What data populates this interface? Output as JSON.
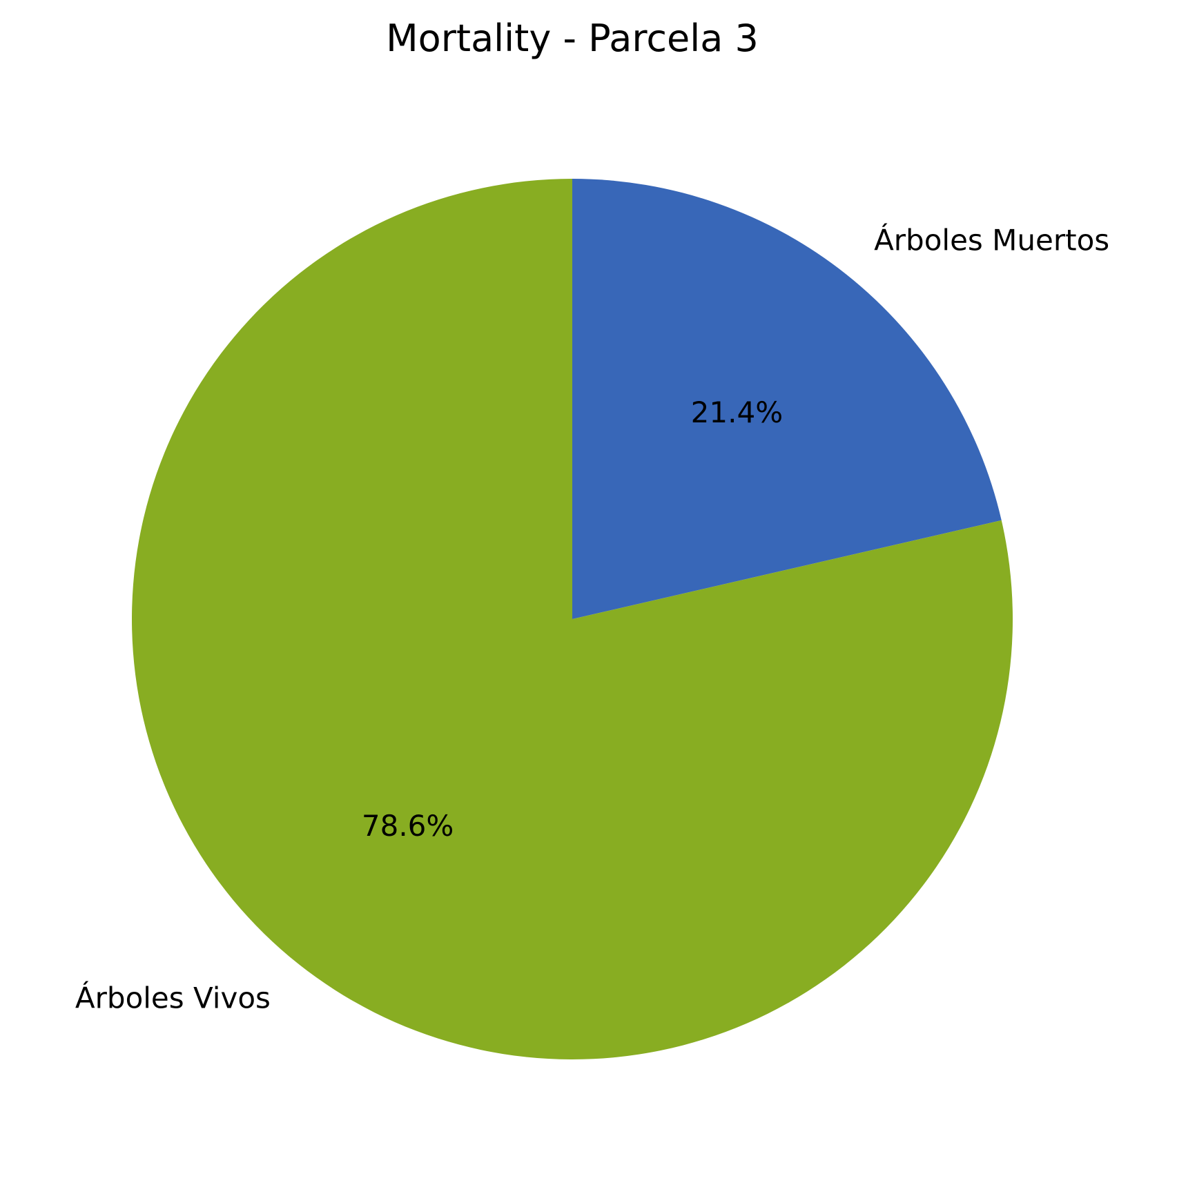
{
  "chart_data": {
    "type": "pie",
    "title": "Mortality - Parcela 3",
    "start_angle_deg": 90,
    "direction": "clockwise",
    "slices": [
      {
        "label": "Árboles Muertos",
        "value": 21.4,
        "pct_label": "21.4%",
        "color": "#3867b8"
      },
      {
        "label": "Árboles Vivos",
        "value": 78.6,
        "pct_label": "78.6%",
        "color": "#88ad22"
      }
    ]
  }
}
